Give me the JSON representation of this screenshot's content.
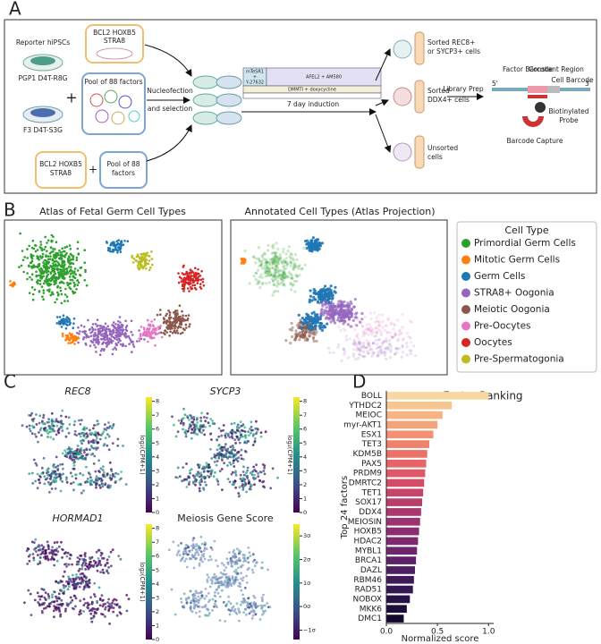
{
  "panel_labels": [
    "A",
    "B",
    "C",
    "D"
  ],
  "panel_a": {
    "reporter": "Reporter hiPSCs",
    "line1": "PGP1 D4T-R8G",
    "line2": "F3 D4T-S3G",
    "plus": "+",
    "construct_top": [
      "BCL2 HOXB5",
      "STRA8"
    ],
    "pool_top": [
      "Pool of 88 factors"
    ],
    "construct_bottom": [
      "BCL2 HOXB5",
      "STRA8"
    ],
    "pool_bottom": [
      "Pool of 88",
      "factors"
    ],
    "nucleofection": [
      "Nucleofection",
      "and selection"
    ],
    "medium1": [
      "mTeSR1",
      "+",
      "Y-27632"
    ],
    "medium2": "AFEL2 + AM580",
    "medium3": "DMMTI + doxycycline",
    "induction": "7 day induction",
    "sorted1": [
      "Sorted REC8+",
      "or SYCP3+ cells"
    ],
    "sorted2": [
      "Sorted",
      "DDX4+ cells"
    ],
    "unsorted": [
      "Unsorted",
      "cells"
    ],
    "library_prep": "Library Prep",
    "factor_barcode": "Factor Barcode",
    "constant_region": "Constant Region",
    "cell_barcode": "Cell Barcode",
    "five_prime": "5'",
    "three_prime": "3'",
    "probe": [
      "Biotinylated",
      "Probe"
    ],
    "capture": "Barcode Capture"
  },
  "panel_b": {
    "title_left": "Atlas of Fetal Germ Cell Types",
    "title_right": "Annotated Cell Types (Atlas Projection)",
    "legend": {
      "title": "Cell Type",
      "items": [
        {
          "name": "Primordial Germ Cells",
          "color": "#2ca02c"
        },
        {
          "name": "Mitotic Germ Cells",
          "color": "#ff7f0e"
        },
        {
          "name": "Germ Cells",
          "color": "#1f77b4"
        },
        {
          "name": "STRA8+ Oogonia",
          "color": "#9467bd"
        },
        {
          "name": "Meiotic Oogonia",
          "color": "#8c564b"
        },
        {
          "name": "Pre-Oocytes",
          "color": "#e377c2"
        },
        {
          "name": "Oocytes",
          "color": "#d62728"
        },
        {
          "name": "Pre-Spermatogonia",
          "color": "#bcbd22"
        }
      ]
    }
  },
  "panel_c": {
    "plots": [
      {
        "title": "REC8"
      },
      {
        "title": "SYCP3"
      },
      {
        "title": "HORMAD1"
      },
      {
        "title": "Meiosis Gene Score"
      }
    ],
    "colorbar_label": "log₂(CPM+1)",
    "clim": [
      0,
      8.3
    ],
    "ticks": [
      0,
      1,
      2,
      3,
      4,
      5,
      6,
      7,
      8
    ],
    "score_clim": [
      -1.4,
      3.5
    ],
    "score_ticks": [
      {
        "value": -1,
        "label": "−1σ"
      },
      {
        "value": 0,
        "label": "0σ"
      },
      {
        "value": 1,
        "label": "1σ"
      },
      {
        "value": 2,
        "label": "2σ"
      },
      {
        "value": 3,
        "label": "3σ"
      }
    ]
  },
  "chart_data": {
    "type": "barh",
    "title": "Factor Ranking",
    "categories": [
      "BOLL",
      "YTHDC2",
      "MEIOC",
      "myr-AKT1",
      "ESX1",
      "TET3",
      "KDM5B",
      "PAX5",
      "PRDM9",
      "DMRTC2",
      "TET1",
      "SOX17",
      "DDX4",
      "MEIOSIN",
      "HOXB5",
      "HDAC2",
      "MYBL1",
      "BRCA1",
      "DAZL",
      "RBM46",
      "RAD51",
      "NOBOX",
      "MKK6",
      "DMC1"
    ],
    "values": [
      1.0,
      0.64,
      0.55,
      0.5,
      0.46,
      0.42,
      0.4,
      0.39,
      0.38,
      0.37,
      0.36,
      0.35,
      0.34,
      0.33,
      0.32,
      0.31,
      0.3,
      0.29,
      0.28,
      0.27,
      0.26,
      0.23,
      0.2,
      0.17
    ],
    "colors": [
      "#f8d8a2",
      "#f6c690",
      "#f5b482",
      "#f4a479",
      "#f29272",
      "#ef826c",
      "#ec7268",
      "#e66466",
      "#de5866",
      "#d44d68",
      "#c8446a",
      "#ba3d6c",
      "#ab376e",
      "#9c326f",
      "#8c2d70",
      "#7d296f",
      "#6d256d",
      "#5e2169",
      "#4f1d63",
      "#40195b",
      "#331652",
      "#261247",
      "#1b0e3a",
      "#12092d"
    ],
    "xlim": [
      0,
      1.05
    ],
    "xticks": [
      {
        "value": 0,
        "label": "0.0"
      },
      {
        "value": 0.5,
        "label": "0.5"
      },
      {
        "value": 1,
        "label": "1.0"
      }
    ],
    "xlabel": "Normalized score",
    "ylabel": "Top 24 factors"
  }
}
